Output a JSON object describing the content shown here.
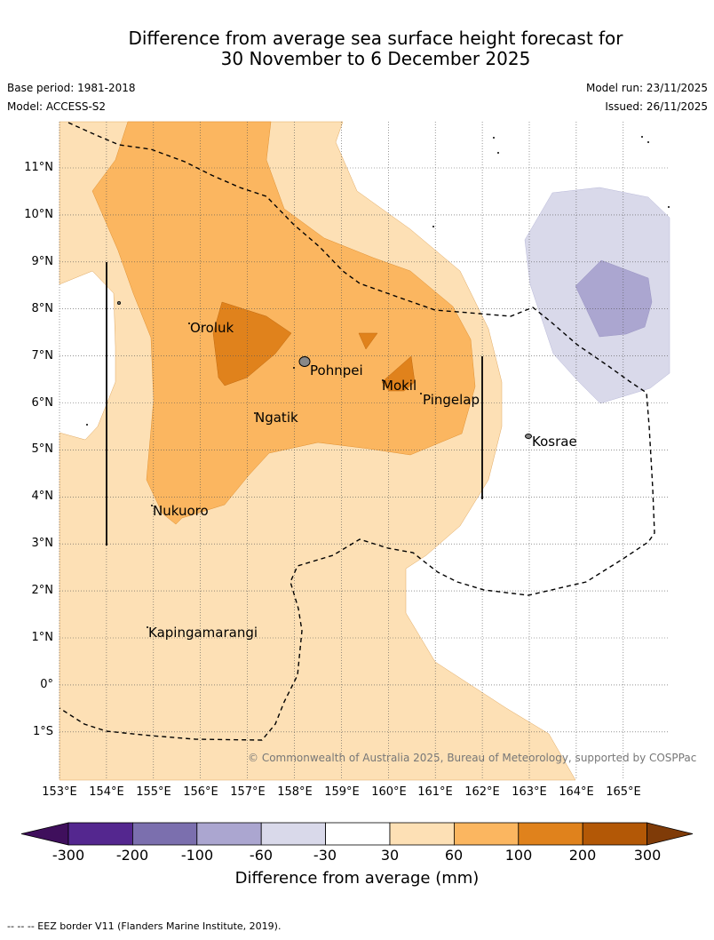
{
  "title": {
    "line1": "Difference from average sea surface height forecast for",
    "line2": "30 November to 6 December 2025"
  },
  "meta": {
    "base_period": "Base period: 1981-2018",
    "model": "Model: ACCESS-S2",
    "model_run": "Model run: 23/11/2025",
    "issued": "Issued: 26/11/2025"
  },
  "axes": {
    "lat_labels": [
      "11°N",
      "10°N",
      "9°N",
      "8°N",
      "7°N",
      "6°N",
      "5°N",
      "4°N",
      "3°N",
      "2°N",
      "1°N",
      "0°",
      "1°S"
    ],
    "lon_labels": [
      "153°E",
      "154°E",
      "155°E",
      "156°E",
      "157°E",
      "158°E",
      "159°E",
      "160°E",
      "161°E",
      "162°E",
      "163°E",
      "164°E",
      "165°E"
    ],
    "grid": "dotted",
    "lon_range": [
      153,
      166
    ],
    "lat_range": [
      -2,
      12
    ]
  },
  "places": [
    "Oroluk",
    "Pohnpei",
    "Mokil",
    "Pingelap",
    "Ngatik",
    "Kosrae",
    "Nukuoro",
    "Kapingamarangi"
  ],
  "copyright": "© Commonwealth of Australia 2025, Bureau of Meteorology, supported by COSPPac",
  "colorbar": {
    "ticks": [
      "-300",
      "-200",
      "-100",
      "-60",
      "-30",
      "30",
      "60",
      "100",
      "200",
      "300"
    ],
    "colors": [
      "#3f0f5c",
      "#54278f",
      "#7b6fae",
      "#aba6d0",
      "#d9d9ea",
      "#ffffff",
      "#fde0b5",
      "#fbb660",
      "#e0821c",
      "#b35806",
      "#7f3b08"
    ],
    "title": "Difference from average (mm)"
  },
  "footnote": "-- -- -- EEZ border V11 (Flanders Marine Institute, 2019)."
}
